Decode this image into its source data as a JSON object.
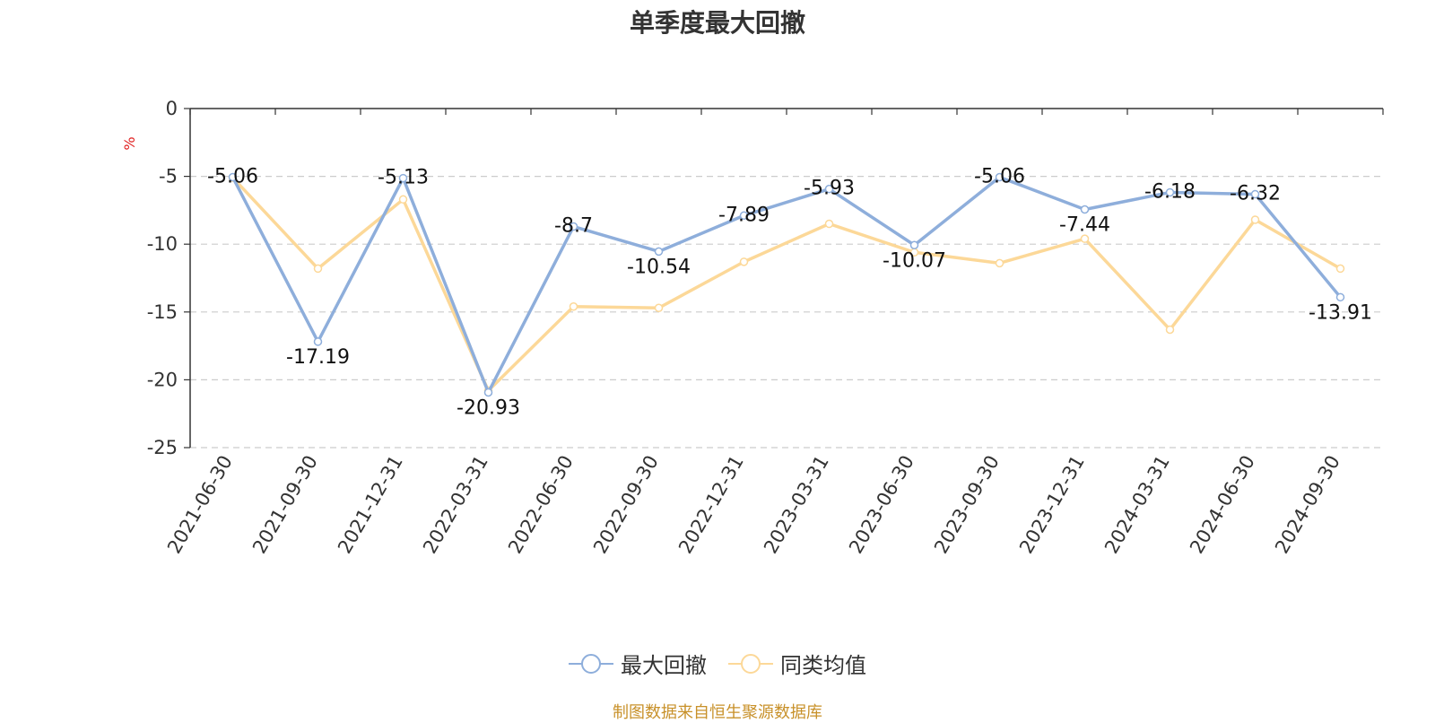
{
  "chart_data": {
    "type": "line",
    "title": "单季度最大回撤",
    "ylabel": "%",
    "xlabel": "",
    "categories": [
      "2021-06-30",
      "2021-09-30",
      "2021-12-31",
      "2022-03-31",
      "2022-06-30",
      "2022-09-30",
      "2022-12-31",
      "2023-03-31",
      "2023-06-30",
      "2023-09-30",
      "2023-12-31",
      "2024-03-31",
      "2024-06-30",
      "2024-09-30"
    ],
    "ylim": [
      -25,
      0
    ],
    "yticks": [
      0,
      -5,
      -10,
      -15,
      -20,
      -25
    ],
    "grid": true,
    "legend_position": "bottom",
    "series": [
      {
        "name": "最大回撤",
        "color": "#8eaedb",
        "values": [
          -5.06,
          -17.19,
          -5.13,
          -20.93,
          -8.7,
          -10.54,
          -7.89,
          -5.93,
          -10.07,
          -5.06,
          -7.44,
          -6.18,
          -6.32,
          -13.91
        ],
        "labels": [
          "-5.06",
          "-17.19",
          "-5.13",
          "-20.93",
          "-8.7",
          "-10.54",
          "-7.89",
          "-5.93",
          "-10.07",
          "-5.06",
          "-7.44",
          "-6.18",
          "-6.32",
          "-13.91"
        ]
      },
      {
        "name": "同类均值",
        "color": "#fcd898",
        "values": [
          -5.1,
          -11.8,
          -6.7,
          -20.8,
          -14.6,
          -14.7,
          -11.3,
          -8.5,
          -10.6,
          -11.4,
          -9.6,
          -16.3,
          -8.2,
          -11.8
        ]
      }
    ]
  },
  "footer": {
    "source": "制图数据来自恒生聚源数据库"
  }
}
